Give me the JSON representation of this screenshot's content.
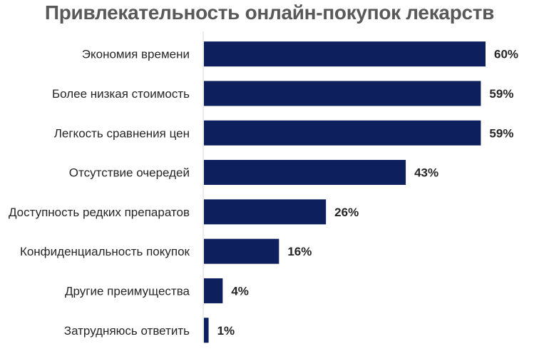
{
  "chart_data": {
    "type": "bar",
    "orientation": "horizontal",
    "title": "Привлекательность онлайн-покупок лекарств",
    "categories": [
      "Экономия времени",
      "Более низкая стоимость",
      "Легкость сравнения цен",
      "Отсутствие очередей",
      "Доступность редких препаратов",
      "Конфиденциальность покупок",
      "Другие преимущества",
      "Затрудняюсь ответить"
    ],
    "values": [
      60,
      59,
      59,
      43,
      26,
      16,
      4,
      1
    ],
    "value_labels": [
      "60%",
      "59%",
      "59%",
      "43%",
      "26%",
      "16%",
      "4%",
      "1%"
    ],
    "unit": "%",
    "xlim": [
      0,
      60
    ],
    "grid": false,
    "legend": "none",
    "bar_color": "#0d1f5c"
  }
}
